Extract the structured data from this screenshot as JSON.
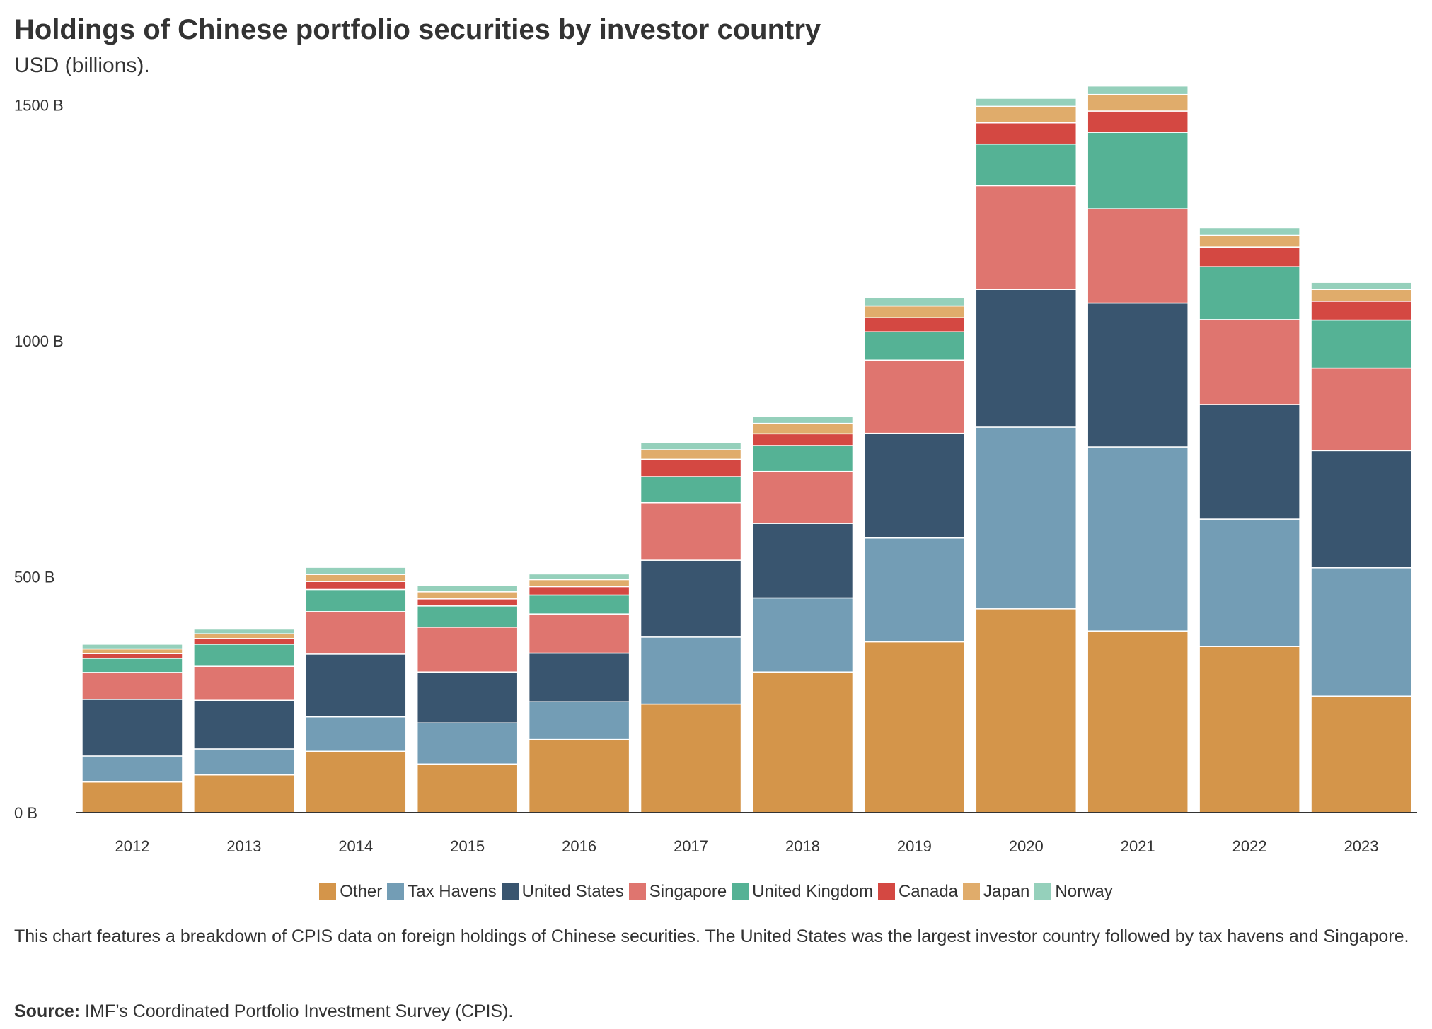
{
  "title": "Holdings of Chinese portfolio securities by investor country",
  "subtitle": "USD (billions).",
  "description": "This chart features a breakdown of CPIS data on foreign holdings of Chinese securities. The United States was the largest investor country followed by tax havens and Singapore.",
  "source_label": "Source:",
  "source_text": "IMF’s Coordinated Portfolio Investment Survey (CPIS).",
  "chart_data": {
    "type": "bar",
    "stacked": true,
    "title": "Holdings of Chinese portfolio securities by investor country",
    "subtitle": "USD (billions).",
    "xlabel": "",
    "ylabel": "",
    "ylim": [
      0,
      1550
    ],
    "yticks": [
      0,
      500,
      1000,
      1500
    ],
    "ytick_labels": [
      "0 B",
      "500 B",
      "1000 B",
      "1500 B"
    ],
    "legend_position": "bottom-center",
    "categories": [
      "2012",
      "2013",
      "2014",
      "2015",
      "2016",
      "2017",
      "2018",
      "2019",
      "2020",
      "2021",
      "2022",
      "2023"
    ],
    "series": [
      {
        "name": "Other",
        "color": "#d4954a",
        "values": [
          65,
          80,
          130,
          103,
          155,
          230,
          298,
          362,
          432,
          385,
          352,
          247
        ]
      },
      {
        "name": "Tax Havens",
        "color": "#739db5",
        "values": [
          55,
          55,
          73,
          87,
          80,
          142,
          157,
          220,
          385,
          390,
          270,
          272
        ]
      },
      {
        "name": "United States",
        "color": "#39556f",
        "values": [
          120,
          103,
          133,
          108,
          103,
          163,
          158,
          222,
          292,
          305,
          243,
          248
        ]
      },
      {
        "name": "Singapore",
        "color": "#df756f",
        "values": [
          57,
          72,
          90,
          95,
          83,
          122,
          110,
          155,
          220,
          200,
          180,
          175
        ]
      },
      {
        "name": "United Kingdom",
        "color": "#55b295",
        "values": [
          30,
          47,
          47,
          45,
          40,
          55,
          55,
          60,
          88,
          162,
          112,
          102
        ]
      },
      {
        "name": "Canada",
        "color": "#d44842",
        "values": [
          10,
          12,
          17,
          15,
          18,
          37,
          25,
          30,
          45,
          45,
          42,
          40
        ]
      },
      {
        "name": "Japan",
        "color": "#e0ac6b",
        "values": [
          10,
          10,
          15,
          15,
          15,
          20,
          22,
          25,
          35,
          35,
          25,
          25
        ]
      },
      {
        "name": "Norway",
        "color": "#95d0bb",
        "values": [
          10,
          10,
          15,
          13,
          12,
          15,
          15,
          18,
          17,
          18,
          15,
          15
        ]
      }
    ]
  }
}
